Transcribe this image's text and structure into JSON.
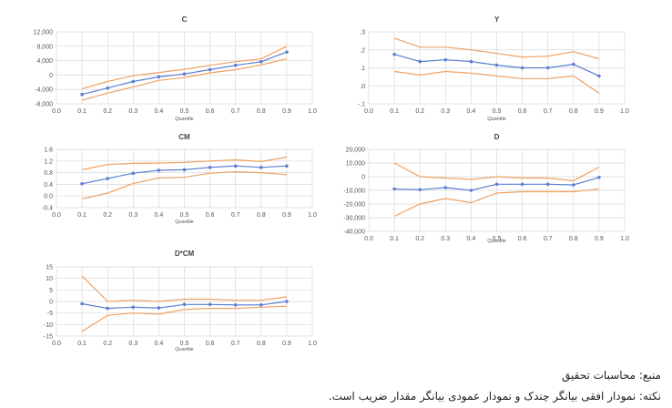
{
  "chart_data": [
    {
      "type": "line",
      "title": "C",
      "xlabel": "Quantile",
      "x": [
        0.1,
        0.2,
        0.3,
        0.4,
        0.5,
        0.6,
        0.7,
        0.8,
        0.9
      ],
      "xlim": [
        0.0,
        1.0
      ],
      "xticks": [
        "0.0",
        "0.1",
        "0.2",
        "0.3",
        "0.4",
        "0.5",
        "0.6",
        "0.7",
        "0.8",
        "0.9",
        "1.0"
      ],
      "ylim": [
        -8000,
        12000
      ],
      "yticks": [
        -8000,
        -4000,
        0,
        4000,
        8000,
        12000
      ],
      "ytick_labels": [
        "-8,000",
        "-4,000",
        "0",
        "4,000",
        "8,000",
        "12,000"
      ],
      "series": [
        {
          "role": "upper",
          "values": [
            -3800,
            -1800,
            -200,
            700,
            1600,
            2700,
            3700,
            4500,
            8000
          ]
        },
        {
          "role": "estimate",
          "values": [
            -5400,
            -3600,
            -1800,
            -500,
            300,
            1500,
            2700,
            3700,
            6400
          ]
        },
        {
          "role": "lower",
          "values": [
            -7000,
            -5000,
            -3300,
            -1500,
            -700,
            600,
            1500,
            2800,
            4500
          ]
        }
      ],
      "grid": true
    },
    {
      "type": "line",
      "title": "Y",
      "xlabel": "Quantile",
      "x": [
        0.1,
        0.2,
        0.3,
        0.4,
        0.5,
        0.6,
        0.7,
        0.8,
        0.9
      ],
      "xlim": [
        0.0,
        1.0
      ],
      "xticks": [
        "0.0",
        "0.1",
        "0.2",
        "0.3",
        "0.4",
        "0.5",
        "0.6",
        "0.7",
        "0.8",
        "0.9",
        "1.0"
      ],
      "ylim": [
        -0.1,
        0.3
      ],
      "yticks": [
        -0.1,
        0.0,
        0.1,
        0.2,
        0.3
      ],
      "ytick_labels": [
        "-.1",
        ".0",
        ".1",
        ".2",
        ".3"
      ],
      "series": [
        {
          "role": "upper",
          "values": [
            0.265,
            0.215,
            0.215,
            0.2,
            0.18,
            0.16,
            0.165,
            0.19,
            0.15
          ]
        },
        {
          "role": "estimate",
          "values": [
            0.175,
            0.135,
            0.145,
            0.135,
            0.115,
            0.1,
            0.1,
            0.12,
            0.055
          ]
        },
        {
          "role": "lower",
          "values": [
            0.08,
            0.06,
            0.08,
            0.07,
            0.055,
            0.04,
            0.04,
            0.055,
            -0.04
          ]
        }
      ],
      "grid": true
    },
    {
      "type": "line",
      "title": "CM",
      "xlabel": "Quantile",
      "x": [
        0.1,
        0.2,
        0.3,
        0.4,
        0.5,
        0.6,
        0.7,
        0.8,
        0.9
      ],
      "xlim": [
        0.0,
        1.0
      ],
      "xticks": [
        "0.0",
        "0.1",
        "0.2",
        "0.3",
        "0.4",
        "0.5",
        "0.6",
        "0.7",
        "0.8",
        "0.9",
        "1.0"
      ],
      "ylim": [
        -0.4,
        1.6
      ],
      "yticks": [
        -0.4,
        0.0,
        0.4,
        0.8,
        1.2,
        1.6
      ],
      "ytick_labels": [
        "-0.4",
        "0.0",
        "0.4",
        "0.8",
        "1.2",
        "1.6"
      ],
      "series": [
        {
          "role": "upper",
          "values": [
            0.9,
            1.08,
            1.12,
            1.13,
            1.15,
            1.2,
            1.24,
            1.18,
            1.33
          ]
        },
        {
          "role": "estimate",
          "values": [
            0.42,
            0.6,
            0.78,
            0.88,
            0.9,
            0.98,
            1.03,
            0.98,
            1.03
          ]
        },
        {
          "role": "lower",
          "values": [
            -0.1,
            0.1,
            0.43,
            0.62,
            0.64,
            0.78,
            0.83,
            0.8,
            0.73
          ]
        }
      ],
      "grid": true
    },
    {
      "type": "line",
      "title": "D",
      "xlabel": "Quantile",
      "x": [
        0.1,
        0.2,
        0.3,
        0.4,
        0.5,
        0.6,
        0.7,
        0.8,
        0.9
      ],
      "xlim": [
        0.0,
        1.0
      ],
      "xticks": [
        "0.0",
        "0.1",
        "0.2",
        "0.3",
        "0.4",
        "0.5",
        "0.6",
        "0.7",
        "0.8",
        "0.9",
        "1.0"
      ],
      "ylim": [
        -40000,
        20000
      ],
      "yticks": [
        -40000,
        -30000,
        -20000,
        -10000,
        0,
        10000,
        20000
      ],
      "ytick_labels": [
        "-40,000",
        "-30,000",
        "-20,000",
        "-10,000",
        "0",
        "10,000",
        "20,000"
      ],
      "series": [
        {
          "role": "upper",
          "values": [
            10000,
            0,
            -1000,
            -2000,
            0,
            -1000,
            -1000,
            -3000,
            7000
          ]
        },
        {
          "role": "estimate",
          "values": [
            -9000,
            -9500,
            -8000,
            -10000,
            -5500,
            -5500,
            -5500,
            -6000,
            -500
          ]
        },
        {
          "role": "lower",
          "values": [
            -29000,
            -20000,
            -16000,
            -19000,
            -12000,
            -11000,
            -11000,
            -11000,
            -9000
          ]
        }
      ],
      "grid": true
    },
    {
      "type": "line",
      "title": "D*CM",
      "xlabel": "Quantile",
      "x": [
        0.1,
        0.2,
        0.3,
        0.4,
        0.5,
        0.6,
        0.7,
        0.8,
        0.9
      ],
      "xlim": [
        0.0,
        1.0
      ],
      "xticks": [
        "0.0",
        "0.1",
        "0.2",
        "0.3",
        "0.4",
        "0.5",
        "0.6",
        "0.7",
        "0.8",
        "0.9",
        "1.0"
      ],
      "ylim": [
        -15,
        15
      ],
      "yticks": [
        -15,
        -10,
        -5,
        0,
        5,
        10,
        15
      ],
      "ytick_labels": [
        "-15",
        "-10",
        "-5",
        "0",
        "5",
        "10",
        "15"
      ],
      "series": [
        {
          "role": "upper",
          "values": [
            11,
            0,
            0.5,
            0,
            1,
            1,
            0.5,
            0.5,
            2
          ]
        },
        {
          "role": "estimate",
          "values": [
            -1,
            -3,
            -2.5,
            -2.8,
            -1.3,
            -1.3,
            -1.5,
            -1.5,
            0
          ]
        },
        {
          "role": "lower",
          "values": [
            -13,
            -6,
            -5,
            -5.5,
            -3.5,
            -3,
            -3,
            -2.5,
            -2
          ]
        }
      ],
      "grid": true
    }
  ],
  "colors": {
    "estimate": "#5b7fd0",
    "band": "#f0a060",
    "grid": "#d9d9d9",
    "axis_text": "#555555",
    "title_text": "#444444"
  },
  "notes": {
    "source": "منبع: محاسبات تحقیق",
    "remark": "نکته: نمودار افقی بیانگر چندک و نمودار عمودی بیانگر مقدار ضریب است."
  }
}
